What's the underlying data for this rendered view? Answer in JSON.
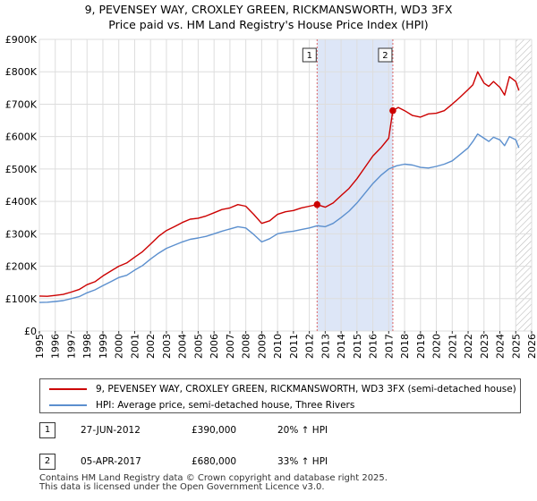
{
  "title_line1": "9, PEVENSEY WAY, CROXLEY GREEN, RICKMANSWORTH, WD3 3FX",
  "title_line2": "Price paid vs. HM Land Registry's House Price Index (HPI)",
  "colors": {
    "property": "#cc0000",
    "hpi": "#5b8fce",
    "shade": "#dde6f7",
    "marker_border": "#333333"
  },
  "chart_data": {
    "type": "line",
    "ylabel": "",
    "xlabel": "",
    "ylim": [
      0,
      900000
    ],
    "xlim": [
      1995,
      2026
    ],
    "yticks": [
      {
        "value": 0,
        "label": "£0"
      },
      {
        "value": 100000,
        "label": "£100K"
      },
      {
        "value": 200000,
        "label": "£200K"
      },
      {
        "value": 300000,
        "label": "£300K"
      },
      {
        "value": 400000,
        "label": "£400K"
      },
      {
        "value": 500000,
        "label": "£500K"
      },
      {
        "value": 600000,
        "label": "£600K"
      },
      {
        "value": 700000,
        "label": "£700K"
      },
      {
        "value": 800000,
        "label": "£800K"
      },
      {
        "value": 900000,
        "label": "£900K"
      }
    ],
    "xticks": [
      "1995",
      "1996",
      "1997",
      "1998",
      "1999",
      "2000",
      "2001",
      "2002",
      "2003",
      "2004",
      "2005",
      "2006",
      "2007",
      "2008",
      "2009",
      "2010",
      "2011",
      "2012",
      "2013",
      "2014",
      "2015",
      "2016",
      "2017",
      "2018",
      "2019",
      "2020",
      "2021",
      "2022",
      "2023",
      "2024",
      "2025",
      "2026"
    ],
    "shaded_range": [
      2012.49,
      2017.26
    ],
    "hatched_from": 2025.0,
    "series": [
      {
        "name": "9, PEVENSEY WAY, CROXLEY GREEN, RICKMANSWORTH, WD3 3FX (semi-detached house)",
        "color": "#cc0000",
        "x": [
          1995.0,
          1995.5,
          1996.0,
          1996.5,
          1997.0,
          1997.5,
          1998.0,
          1998.5,
          1999.0,
          1999.5,
          2000.0,
          2000.5,
          2001.0,
          2001.5,
          2002.0,
          2002.5,
          2003.0,
          2003.5,
          2004.0,
          2004.5,
          2005.0,
          2005.5,
          2006.0,
          2006.5,
          2007.0,
          2007.5,
          2008.0,
          2008.5,
          2009.0,
          2009.5,
          2010.0,
          2010.5,
          2011.0,
          2011.5,
          2012.0,
          2012.49,
          2013.0,
          2013.5,
          2014.0,
          2014.5,
          2015.0,
          2015.5,
          2016.0,
          2016.5,
          2017.0,
          2017.26,
          2017.6,
          2018.0,
          2018.5,
          2019.0,
          2019.5,
          2020.0,
          2020.5,
          2021.0,
          2021.5,
          2022.0,
          2022.3,
          2022.6,
          2023.0,
          2023.3,
          2023.6,
          2024.0,
          2024.3,
          2024.6,
          2025.0,
          2025.2
        ],
        "values": [
          108000,
          107000,
          110000,
          113000,
          120000,
          128000,
          143000,
          152000,
          170000,
          185000,
          200000,
          210000,
          228000,
          245000,
          268000,
          292000,
          310000,
          322000,
          335000,
          345000,
          348000,
          355000,
          365000,
          375000,
          380000,
          390000,
          385000,
          360000,
          332000,
          340000,
          360000,
          368000,
          372000,
          380000,
          385000,
          390000,
          382000,
          395000,
          418000,
          440000,
          470000,
          505000,
          540000,
          565000,
          595000,
          680000,
          690000,
          680000,
          665000,
          660000,
          670000,
          672000,
          680000,
          700000,
          722000,
          745000,
          760000,
          800000,
          765000,
          755000,
          770000,
          752000,
          728000,
          785000,
          770000,
          742000
        ]
      },
      {
        "name": "HPI: Average price, semi-detached house, Three Rivers",
        "color": "#5b8fce",
        "x": [
          1995.0,
          1995.5,
          1996.0,
          1996.5,
          1997.0,
          1997.5,
          1998.0,
          1998.5,
          1999.0,
          1999.5,
          2000.0,
          2000.5,
          2001.0,
          2001.5,
          2002.0,
          2002.5,
          2003.0,
          2003.5,
          2004.0,
          2004.5,
          2005.0,
          2005.5,
          2006.0,
          2006.5,
          2007.0,
          2007.5,
          2008.0,
          2008.5,
          2009.0,
          2009.5,
          2010.0,
          2010.5,
          2011.0,
          2011.5,
          2012.0,
          2012.5,
          2013.0,
          2013.5,
          2014.0,
          2014.5,
          2015.0,
          2015.5,
          2016.0,
          2016.5,
          2017.0,
          2017.5,
          2018.0,
          2018.5,
          2019.0,
          2019.5,
          2020.0,
          2020.5,
          2021.0,
          2021.5,
          2022.0,
          2022.3,
          2022.6,
          2023.0,
          2023.3,
          2023.6,
          2024.0,
          2024.3,
          2024.6,
          2025.0,
          2025.2
        ],
        "values": [
          88000,
          89000,
          91000,
          94000,
          100000,
          106000,
          118000,
          127000,
          140000,
          152000,
          165000,
          172000,
          188000,
          202000,
          222000,
          240000,
          255000,
          265000,
          275000,
          283000,
          287000,
          292000,
          300000,
          308000,
          315000,
          322000,
          318000,
          298000,
          275000,
          285000,
          300000,
          305000,
          308000,
          313000,
          318000,
          325000,
          322000,
          332000,
          350000,
          370000,
          395000,
          425000,
          455000,
          480000,
          500000,
          510000,
          515000,
          512000,
          505000,
          503000,
          508000,
          515000,
          525000,
          545000,
          565000,
          585000,
          608000,
          595000,
          585000,
          598000,
          590000,
          572000,
          600000,
          590000,
          565000
        ]
      }
    ],
    "annotations": [
      {
        "label": "1",
        "x": 2012.49,
        "value": 390000
      },
      {
        "label": "2",
        "x": 2017.26,
        "value": 680000
      }
    ]
  },
  "legend": {
    "items": [
      {
        "label": "9, PEVENSEY WAY, CROXLEY GREEN, RICKMANSWORTH, WD3 3FX (semi-detached house)",
        "color": "#cc0000"
      },
      {
        "label": "HPI: Average price, semi-detached house, Three Rivers",
        "color": "#5b8fce"
      }
    ]
  },
  "sales": [
    {
      "num": "1",
      "date": "27-JUN-2012",
      "price": "£390,000",
      "hpi": "20% ↑ HPI"
    },
    {
      "num": "2",
      "date": "05-APR-2017",
      "price": "£680,000",
      "hpi": "33% ↑ HPI"
    }
  ],
  "footer": {
    "line1": "Contains HM Land Registry data © Crown copyright and database right 2025.",
    "line2": "This data is licensed under the Open Government Licence v3.0."
  }
}
